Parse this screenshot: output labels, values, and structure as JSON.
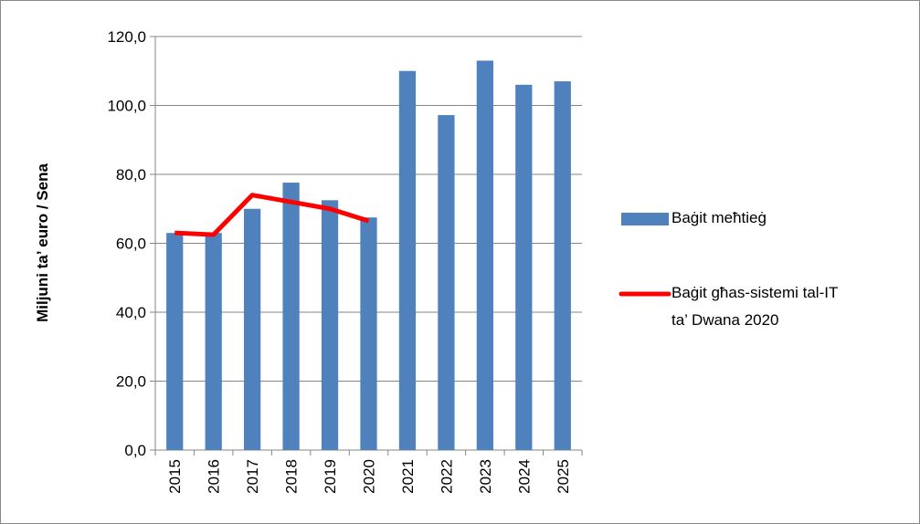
{
  "chart_data": {
    "type": "bar-line",
    "y_label": "Miljuni ta’ euro / Sena",
    "categories": [
      "2015",
      "2016",
      "2017",
      "2018",
      "2019",
      "2020",
      "2021",
      "2022",
      "2023",
      "2024",
      "2025"
    ],
    "series": [
      {
        "name": "Baġit meħtieġ",
        "type": "bar",
        "color": "#4f81bd",
        "values": [
          63,
          63,
          70,
          77.6,
          72.5,
          67.5,
          110,
          97.2,
          113,
          106,
          107
        ]
      },
      {
        "name": "Baġit għas-sistemi tal-IT ta’ Dwana 2020",
        "type": "line",
        "color": "#ff0000",
        "values": [
          63,
          62.5,
          74,
          72,
          70,
          66.5,
          null,
          null,
          null,
          null,
          null
        ]
      }
    ],
    "ylim": [
      0,
      120
    ],
    "yticks": [
      {
        "value": 0,
        "label": "0,0"
      },
      {
        "value": 20,
        "label": "20,0"
      },
      {
        "value": 40,
        "label": "40,0"
      },
      {
        "value": 60,
        "label": "60,0"
      },
      {
        "value": 80,
        "label": "80,0"
      },
      {
        "value": 100,
        "label": "100,0"
      },
      {
        "value": 120,
        "label": "120,0"
      }
    ],
    "grid": true,
    "legend": "right"
  }
}
